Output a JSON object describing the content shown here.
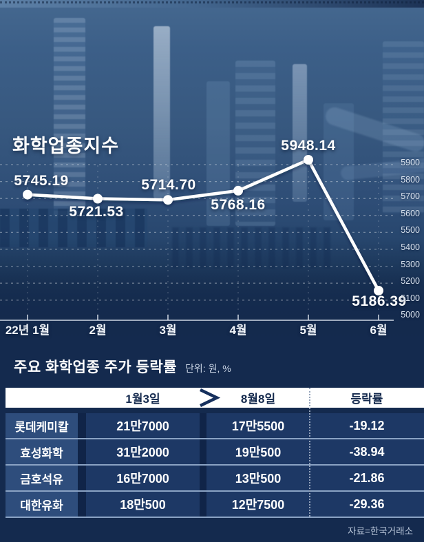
{
  "chart_data": {
    "type": "line",
    "title": "화학업종지수",
    "x": [
      "22년 1월",
      "2월",
      "3월",
      "4월",
      "5월",
      "6월"
    ],
    "values": [
      5745.19,
      5721.53,
      5714.7,
      5768.16,
      5948.14,
      5186.39
    ],
    "point_labels": [
      "5745.19",
      "5721.53",
      "5714.70",
      "5768.16",
      "5948.14",
      "5186.39"
    ],
    "yticks": [
      "5900",
      "5800",
      "5700",
      "5600",
      "5500",
      "5400",
      "5300",
      "5200",
      "5100",
      "5000"
    ],
    "ylim": [
      5000,
      5950
    ],
    "grid": "dashed",
    "legend": "none",
    "line_color": "#ffffff"
  },
  "table": {
    "title": "주요 화학업종 주가 등락률",
    "unit_label": "단위: 원, %",
    "columns": [
      "1월3일",
      "8월8일",
      "등락률"
    ],
    "rows": [
      {
        "name": "롯데케미칼",
        "jan3": "21만7000",
        "aug8": "17만5500",
        "change": "-19.12"
      },
      {
        "name": "효성화학",
        "jan3": "31만2000",
        "aug8": "19만500",
        "change": "-38.94"
      },
      {
        "name": "금호석유",
        "jan3": "16만7000",
        "aug8": "13만500",
        "change": "-21.86"
      },
      {
        "name": "대한유화",
        "jan3": "18만500",
        "aug8": "12만7500",
        "change": "-29.36"
      }
    ]
  },
  "footer": {
    "source": "자료=한국거래소"
  },
  "colors": {
    "background_navy": "#142a4e",
    "line_white": "#ffffff",
    "header_band": "#ffffff",
    "header_text_navy": "#14294d",
    "name_column": "#2e4d7c",
    "cell_navy": "#1d3865",
    "row_separator": "#8ba3c4",
    "axis_label": "#dbe4f0"
  }
}
